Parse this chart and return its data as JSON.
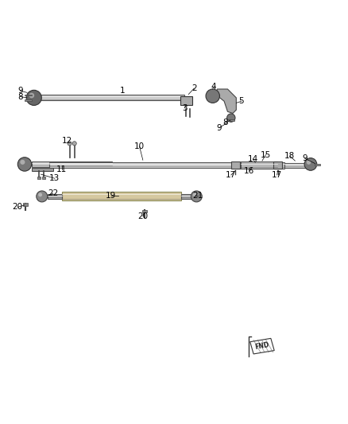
{
  "bg_color": "#ffffff",
  "fig_width": 4.38,
  "fig_height": 5.33,
  "dpi": 100,
  "font_size": 7.5,
  "line_color": "#2a2a2a",
  "part_color": "#888888",
  "light_part_color": "#bbbbbb"
}
